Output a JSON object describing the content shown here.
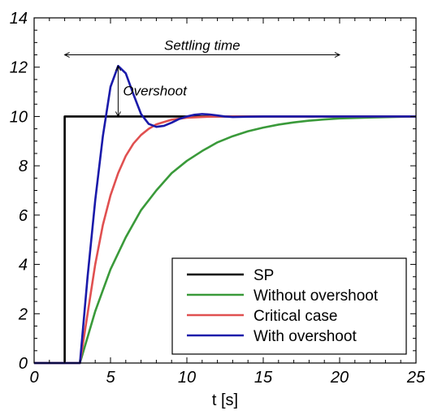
{
  "chart_data": {
    "type": "line",
    "xlabel": "t [s]",
    "ylabel": "",
    "xlim": [
      0,
      25
    ],
    "ylim": [
      0,
      14
    ],
    "x_ticks": [
      0,
      5,
      10,
      15,
      20,
      25
    ],
    "y_ticks": [
      0,
      2,
      4,
      6,
      8,
      10,
      12,
      14
    ],
    "grid": false,
    "legend_position": "bottom-right",
    "series": [
      {
        "name": "SP",
        "color": "#000000",
        "points": [
          [
            0,
            0
          ],
          [
            2,
            0
          ],
          [
            2,
            10
          ],
          [
            25,
            10
          ]
        ]
      },
      {
        "name": "Without overshoot",
        "color": "#3a9a3a",
        "points": [
          [
            0,
            0
          ],
          [
            3,
            0
          ],
          [
            4,
            2.1
          ],
          [
            5,
            3.8
          ],
          [
            6,
            5.1
          ],
          [
            7,
            6.2
          ],
          [
            8,
            7.0
          ],
          [
            9,
            7.7
          ],
          [
            10,
            8.2
          ],
          [
            11,
            8.6
          ],
          [
            12,
            8.95
          ],
          [
            13,
            9.2
          ],
          [
            14,
            9.4
          ],
          [
            15,
            9.55
          ],
          [
            16,
            9.67
          ],
          [
            17,
            9.76
          ],
          [
            18,
            9.83
          ],
          [
            19,
            9.88
          ],
          [
            20,
            9.92
          ],
          [
            22,
            9.96
          ],
          [
            25,
            10.0
          ]
        ]
      },
      {
        "name": "Critical case",
        "color": "#e05050",
        "points": [
          [
            0,
            0
          ],
          [
            3,
            0
          ],
          [
            3.5,
            2.0
          ],
          [
            4,
            4.0
          ],
          [
            4.5,
            5.6
          ],
          [
            5,
            6.8
          ],
          [
            5.5,
            7.7
          ],
          [
            6,
            8.4
          ],
          [
            6.5,
            8.9
          ],
          [
            7,
            9.25
          ],
          [
            7.5,
            9.5
          ],
          [
            8,
            9.68
          ],
          [
            9,
            9.87
          ],
          [
            10,
            9.95
          ],
          [
            11,
            9.98
          ],
          [
            12,
            10.0
          ],
          [
            25,
            10.0
          ]
        ]
      },
      {
        "name": "With overshoot",
        "color": "#1a1aaa",
        "points": [
          [
            0,
            0
          ],
          [
            3,
            0
          ],
          [
            3.5,
            3.5
          ],
          [
            4,
            6.6
          ],
          [
            4.5,
            9.2
          ],
          [
            5,
            11.2
          ],
          [
            5.5,
            12.05
          ],
          [
            6,
            11.75
          ],
          [
            6.5,
            10.9
          ],
          [
            7,
            10.1
          ],
          [
            7.5,
            9.7
          ],
          [
            8,
            9.58
          ],
          [
            8.5,
            9.62
          ],
          [
            9,
            9.75
          ],
          [
            9.5,
            9.9
          ],
          [
            10,
            10.0
          ],
          [
            10.5,
            10.07
          ],
          [
            11,
            10.1
          ],
          [
            11.5,
            10.08
          ],
          [
            12,
            10.04
          ],
          [
            12.5,
            10.0
          ],
          [
            13,
            9.98
          ],
          [
            14,
            9.99
          ],
          [
            15,
            10.0
          ],
          [
            25,
            10.0
          ]
        ]
      }
    ],
    "annotations": {
      "settling_time": {
        "text": "Settling time",
        "x_start": 2,
        "x_end": 20,
        "y": 12.5
      },
      "overshoot": {
        "text": "Overshoot",
        "x": 5.5,
        "y_from": 10,
        "y_to": 12.05
      }
    }
  }
}
